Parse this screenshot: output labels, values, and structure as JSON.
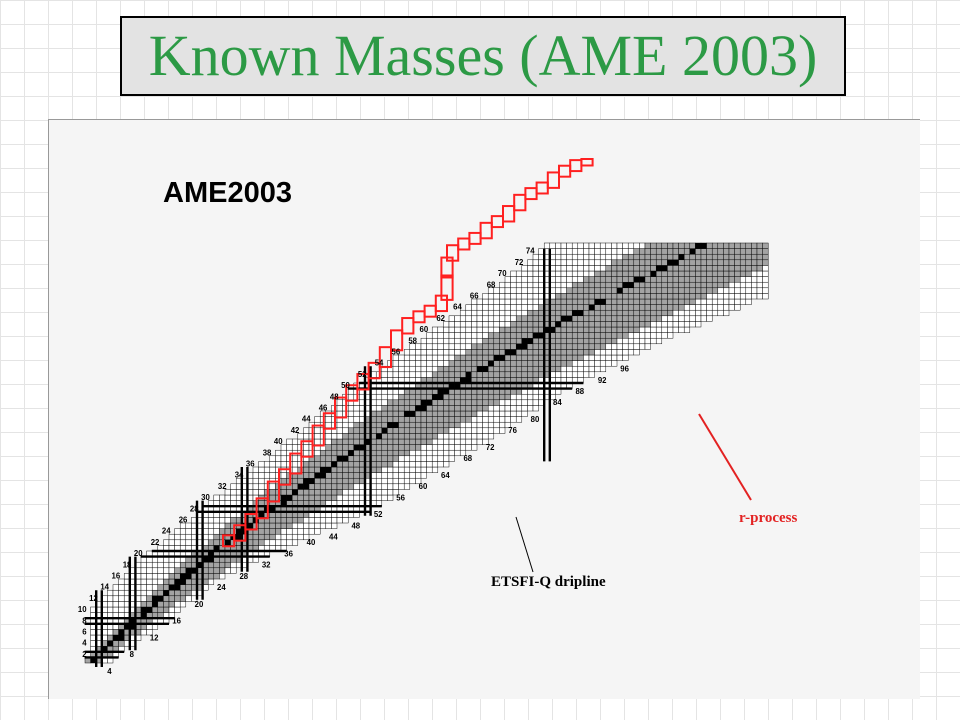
{
  "slide": {
    "title": "Known Masses (AME 2003)"
  },
  "chart": {
    "heading": "AME2003",
    "z_labels": [
      "2",
      "4",
      "6",
      "8",
      "10",
      "12",
      "14",
      "16",
      "18",
      "20",
      "22",
      "24",
      "26",
      "28",
      "30",
      "32",
      "34",
      "36",
      "38",
      "40",
      "42",
      "44",
      "46",
      "48",
      "50",
      "52",
      "54",
      "56",
      "58",
      "60",
      "62",
      "64",
      "66",
      "68",
      "70",
      "72",
      "74"
    ],
    "n_labels": [
      "4",
      "8",
      "12",
      "16",
      "20",
      "24",
      "28",
      "32",
      "36",
      "40",
      "44",
      "48",
      "52",
      "56",
      "60",
      "64",
      "68",
      "72",
      "76",
      "80",
      "84",
      "88",
      "92",
      "96"
    ],
    "annotations": {
      "dripline": "ETSFI-Q dripline",
      "rprocess": "r-process"
    },
    "colors": {
      "known_gray": "#a3a3a3",
      "stable_black": "#000000",
      "rprocess_red": "#ff2020",
      "grid_line": "#000000"
    }
  }
}
